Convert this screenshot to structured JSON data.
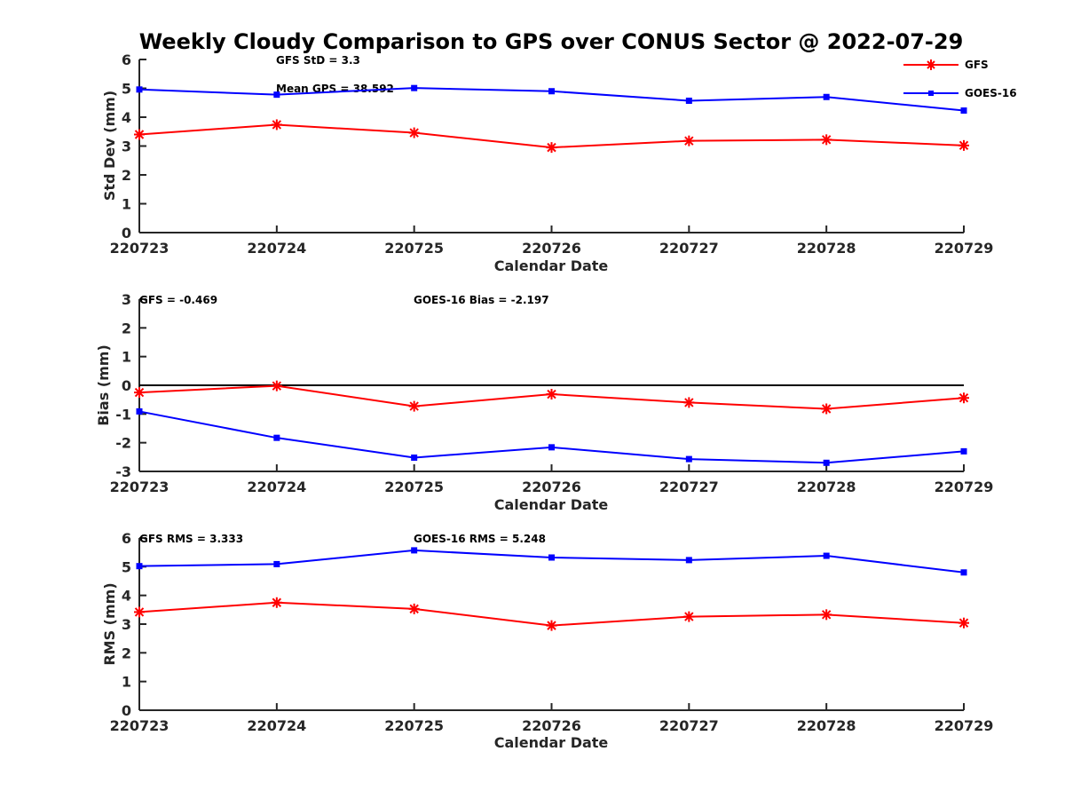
{
  "chart_data": {
    "type": "line",
    "title": "Weekly Cloudy Comparison to GPS over CONUS Sector @ 2022-07-29",
    "x": [
      "220723",
      "220724",
      "220725",
      "220726",
      "220727",
      "220728",
      "220729"
    ],
    "legend": {
      "placement": "top-right",
      "entries": [
        {
          "name": "GFS",
          "color": "#ff0000",
          "marker": "asterisk"
        },
        {
          "name": "GOES-16",
          "color": "#0000ff",
          "marker": "square"
        }
      ]
    },
    "panels": [
      {
        "id": "stddev",
        "xlabel": "Calendar Date",
        "ylabel": "Std Dev (mm)",
        "ylim": [
          0,
          6
        ],
        "yticks": [
          "0",
          "1",
          "2",
          "3",
          "4",
          "5",
          "6"
        ],
        "zero_line": false,
        "annotations": [
          "GFS StD = 3.3",
          "Mean GPS = 38.592"
        ],
        "series": [
          {
            "name": "GFS",
            "color": "#ff0000",
            "marker": "asterisk",
            "values": [
              3.4,
              3.74,
              3.46,
              2.95,
              3.18,
              3.22,
              3.02
            ]
          },
          {
            "name": "GOES-16",
            "color": "#0000ff",
            "marker": "square",
            "values": [
              4.96,
              4.78,
              5.01,
              4.9,
              4.57,
              4.7,
              4.23
            ]
          }
        ]
      },
      {
        "id": "bias",
        "xlabel": "Calendar Date",
        "ylabel": "Bias (mm)",
        "ylim": [
          -3,
          3
        ],
        "yticks": [
          "-3",
          "-2",
          "-1",
          "0",
          "1",
          "2",
          "3"
        ],
        "zero_line": true,
        "annotations": [
          "GFS = -0.469",
          "GOES-16 Bias  = -2.197"
        ],
        "series": [
          {
            "name": "GFS",
            "color": "#ff0000",
            "marker": "asterisk",
            "values": [
              -0.25,
              -0.02,
              -0.73,
              -0.31,
              -0.6,
              -0.82,
              -0.44
            ]
          },
          {
            "name": "GOES-16",
            "color": "#0000ff",
            "marker": "square",
            "values": [
              -0.91,
              -1.83,
              -2.52,
              -2.16,
              -2.57,
              -2.7,
              -2.3
            ]
          }
        ]
      },
      {
        "id": "rms",
        "xlabel": "Calendar Date",
        "ylabel": "RMS (mm)",
        "ylim": [
          0,
          6
        ],
        "yticks": [
          "0",
          "1",
          "2",
          "3",
          "4",
          "5",
          "6"
        ],
        "zero_line": false,
        "annotations": [
          "GFS RMS = 3.333",
          "GOES-16 RMS = 5.248"
        ],
        "series": [
          {
            "name": "GFS",
            "color": "#ff0000",
            "marker": "asterisk",
            "values": [
              3.42,
              3.75,
              3.53,
              2.95,
              3.26,
              3.33,
              3.04
            ]
          },
          {
            "name": "GOES-16",
            "color": "#0000ff",
            "marker": "square",
            "values": [
              5.02,
              5.09,
              5.57,
              5.32,
              5.23,
              5.38,
              4.8
            ]
          }
        ]
      }
    ]
  }
}
